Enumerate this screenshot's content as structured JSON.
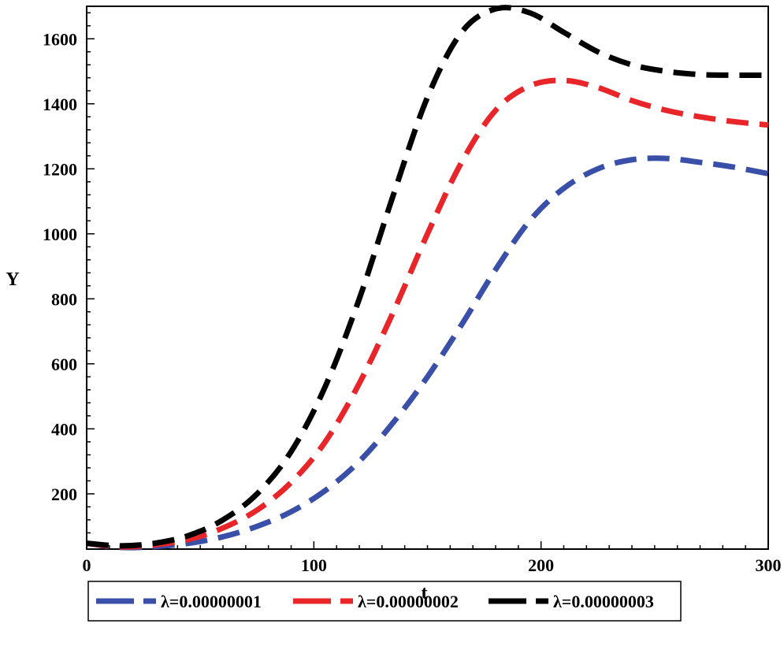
{
  "chart_data": {
    "type": "line",
    "title": "",
    "xlabel": "t",
    "ylabel": "Y",
    "xlim": [
      0,
      300
    ],
    "ylim": [
      30,
      1700
    ],
    "x_ticks": [
      0,
      100,
      200,
      300
    ],
    "y_ticks": [
      200,
      400,
      600,
      800,
      1000,
      1200,
      1400,
      1600
    ],
    "grid": false,
    "legend_position": "bottom",
    "series": [
      {
        "name": "λ=0.00000001",
        "color": "#3a4fa8",
        "x": [
          0,
          15,
          30,
          45,
          60,
          75,
          90,
          105,
          120,
          135,
          150,
          165,
          180,
          195,
          210,
          225,
          240,
          255,
          270,
          285,
          300
        ],
        "y": [
          48,
          35,
          38,
          48,
          68,
          100,
          145,
          210,
          300,
          420,
          560,
          720,
          890,
          1040,
          1140,
          1200,
          1228,
          1232,
          1220,
          1205,
          1185
        ]
      },
      {
        "name": "λ=0.00000002",
        "color": "#e8262a",
        "x": [
          0,
          15,
          30,
          45,
          60,
          75,
          90,
          105,
          120,
          135,
          150,
          165,
          180,
          195,
          210,
          225,
          240,
          255,
          270,
          285,
          300
        ],
        "y": [
          48,
          37,
          43,
          60,
          95,
          150,
          235,
          360,
          540,
          760,
          1000,
          1220,
          1380,
          1455,
          1472,
          1450,
          1410,
          1380,
          1360,
          1345,
          1335
        ]
      },
      {
        "name": "λ=0.00000003",
        "color": "#000000",
        "x": [
          0,
          15,
          30,
          45,
          60,
          75,
          90,
          105,
          120,
          135,
          150,
          165,
          180,
          195,
          210,
          225,
          240,
          255,
          270,
          285,
          300
        ],
        "y": [
          48,
          40,
          48,
          72,
          120,
          200,
          330,
          530,
          800,
          1120,
          1420,
          1620,
          1692,
          1680,
          1620,
          1560,
          1520,
          1500,
          1490,
          1488,
          1488
        ]
      }
    ]
  }
}
